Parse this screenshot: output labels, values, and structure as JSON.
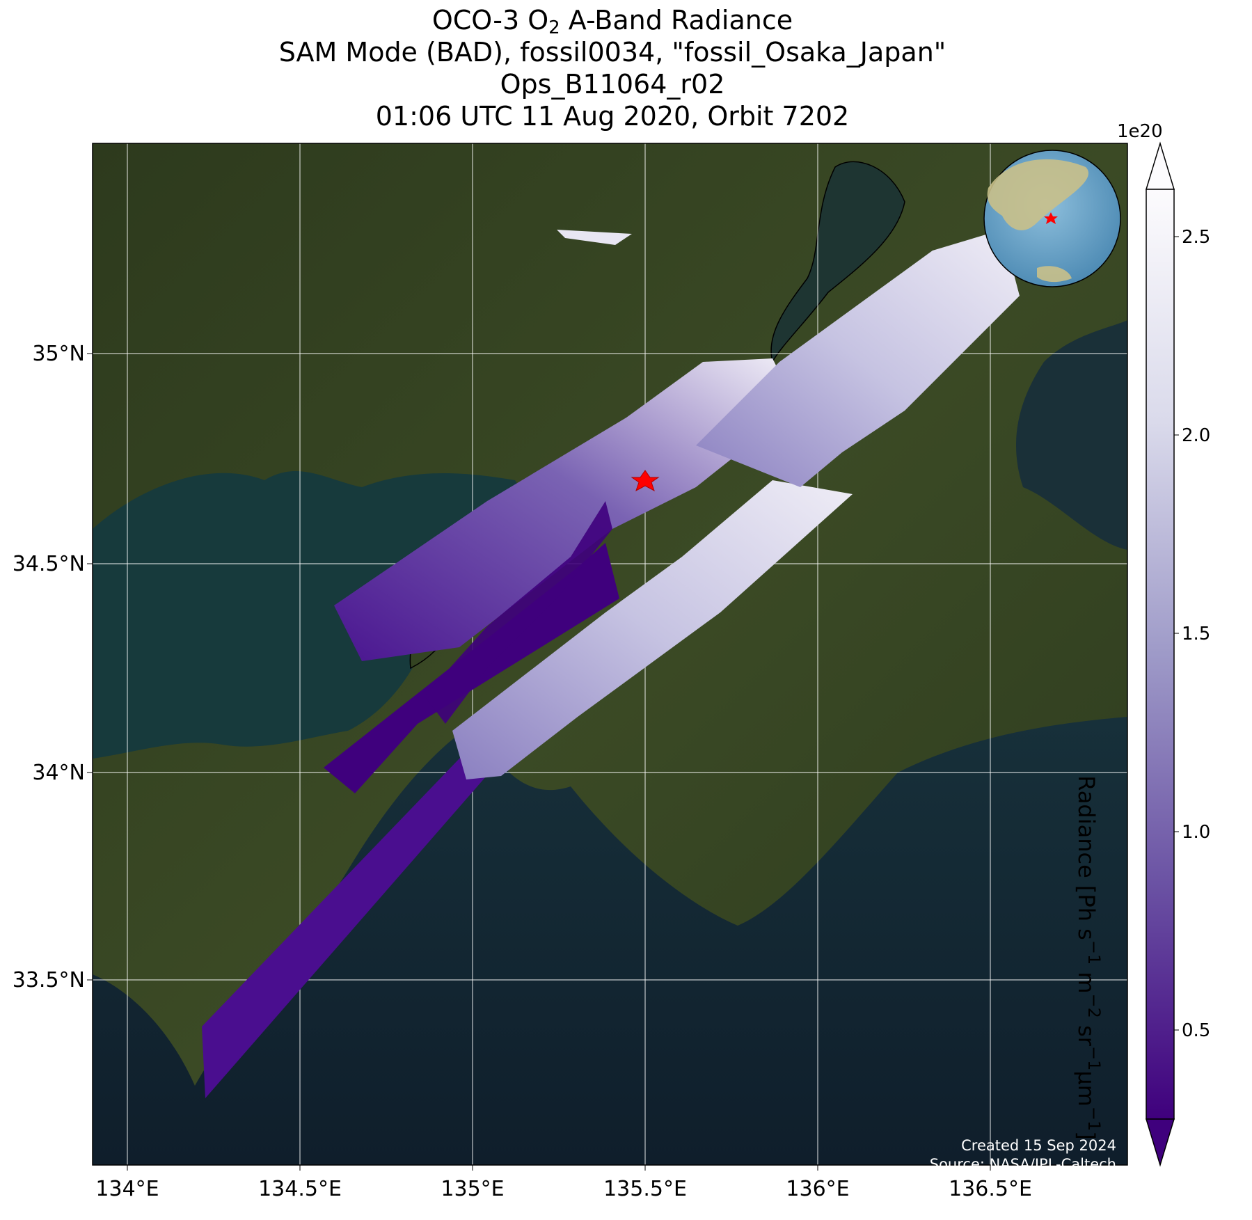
{
  "title": {
    "line1_pre": "OCO-3 O",
    "line1_sub": "2",
    "line1_post": " A-Band Radiance",
    "line2": "SAM Mode (BAD), fossil0034, \"fossil_Osaka_Japan\"",
    "line3": "Ops_B11064_r02",
    "line4": "01:06 UTC 11 Aug 2020, Orbit 7202"
  },
  "map": {
    "lon_range": [
      133.9,
      136.9
    ],
    "lat_range": [
      33.0,
      35.5
    ],
    "x_ticks": [
      "134°E",
      "134.5°E",
      "135°E",
      "135.5°E",
      "136°E",
      "136.5°E"
    ],
    "y_ticks": [
      "33.5°N",
      "34°N",
      "34.5°N",
      "35°N"
    ],
    "target": {
      "lon": 135.5,
      "lat": 34.7,
      "marker": "red-star"
    },
    "background": "satellite imagery (land green, sea dark blue)",
    "inset": "globe locator with red star over Japan"
  },
  "colorbar": {
    "label_parts": [
      "Radiance [Ph s",
      "−1",
      " m",
      "−2",
      " sr",
      "−1",
      "μm",
      "−1",
      "]"
    ],
    "offset_label": "1e20",
    "ticks": [
      "0.5",
      "1.0",
      "1.5",
      "2.0",
      "2.5"
    ],
    "tick_values": [
      0.5,
      1.0,
      1.5,
      2.0,
      2.5
    ],
    "range": [
      0.2,
      2.7
    ],
    "extend": "both",
    "colormap": "Purples_r",
    "color_low": "#3f007d",
    "color_high": "#fcfbfd"
  },
  "credit": {
    "line1": "Created 15 Sep 2024",
    "line2": "Source: NASA/JPL-Caltech"
  },
  "chart_data": {
    "type": "heatmap",
    "description_source": "OCO-3 SAM footprints (swaths) colored by radiance",
    "swaths": [
      {
        "name": "swath-1",
        "from": [
          134.22,
          33.3
        ],
        "to": [
          134.93,
          34.58
        ],
        "level": "low"
      },
      {
        "name": "swath-2",
        "from": [
          134.57,
          34.02
        ],
        "to": [
          135.35,
          34.72
        ],
        "level": "low"
      },
      {
        "name": "swath-3",
        "from": [
          134.75,
          34.4
        ],
        "to": [
          135.85,
          34.98
        ],
        "level": "mixed"
      },
      {
        "name": "swath-4",
        "from": [
          135.05,
          34.1
        ],
        "to": [
          136.05,
          34.68
        ],
        "level": "high"
      },
      {
        "name": "swath-5",
        "from": [
          135.4,
          34.15
        ],
        "to": [
          136.55,
          35.25
        ],
        "level": "high"
      },
      {
        "name": "fragment",
        "from": [
          135.25,
          35.29
        ],
        "to": [
          135.45,
          35.27
        ],
        "level": "high"
      }
    ]
  }
}
